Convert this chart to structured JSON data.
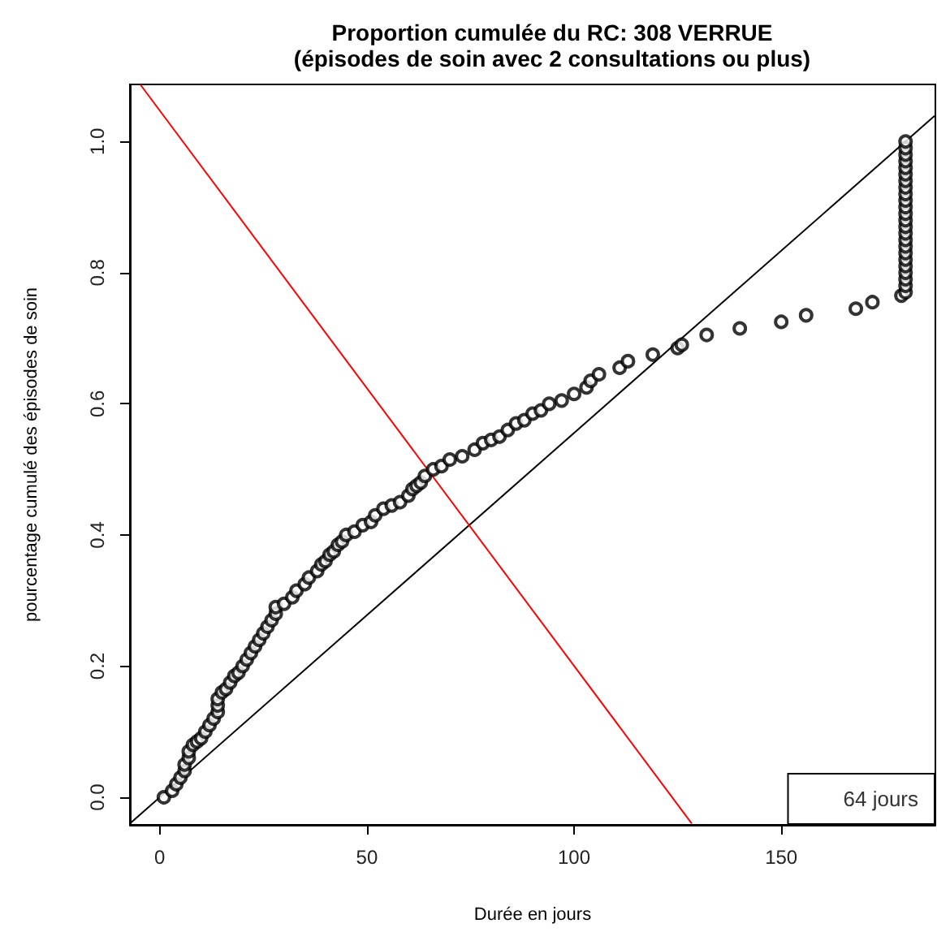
{
  "chart_data": {
    "type": "scatter",
    "title": "Proportion cumulée du RC: 308 VERRUE",
    "subtitle": "(épisodes de soin avec 2 consultations ou plus)",
    "xlabel": "Durée en jours",
    "ylabel": "pourcentage cumulé des épisodes de soin",
    "annotations": [
      "64 jours"
    ],
    "series": [
      {
        "color": "#000000",
        "marker": "circle",
        "x": [
          1,
          3,
          4,
          5,
          6,
          6,
          7,
          7,
          8,
          9,
          10,
          11,
          12,
          13,
          14,
          14,
          14,
          15,
          16,
          17,
          18,
          19,
          20,
          21,
          22,
          23,
          24,
          25,
          26,
          27,
          28,
          28,
          30,
          32,
          33,
          35,
          36,
          38,
          39,
          40,
          41,
          42,
          43,
          44,
          45,
          47,
          49,
          51,
          52,
          54,
          56,
          58,
          60,
          61,
          62,
          63,
          64,
          66,
          68,
          70,
          73,
          76,
          78,
          80,
          82,
          84,
          86,
          88,
          90,
          92,
          94,
          97,
          100,
          103,
          104,
          106,
          111,
          113,
          119,
          125,
          126,
          132,
          140,
          150,
          156,
          168,
          172,
          179,
          180,
          180,
          180,
          180,
          180,
          180,
          180,
          180,
          180,
          180,
          180,
          180,
          180,
          180,
          180,
          180,
          180,
          180,
          180,
          180,
          180,
          180,
          180,
          180
        ],
        "values": [
          0.0,
          0.01,
          0.02,
          0.03,
          0.04,
          0.05,
          0.06,
          0.07,
          0.08,
          0.085,
          0.09,
          0.1,
          0.11,
          0.12,
          0.13,
          0.14,
          0.15,
          0.16,
          0.165,
          0.175,
          0.185,
          0.19,
          0.2,
          0.21,
          0.22,
          0.23,
          0.24,
          0.25,
          0.26,
          0.27,
          0.28,
          0.29,
          0.295,
          0.305,
          0.315,
          0.325,
          0.335,
          0.345,
          0.355,
          0.36,
          0.37,
          0.375,
          0.385,
          0.39,
          0.4,
          0.405,
          0.415,
          0.42,
          0.43,
          0.44,
          0.445,
          0.45,
          0.46,
          0.47,
          0.475,
          0.48,
          0.49,
          0.5,
          0.505,
          0.515,
          0.52,
          0.53,
          0.54,
          0.545,
          0.55,
          0.56,
          0.57,
          0.575,
          0.585,
          0.59,
          0.6,
          0.605,
          0.615,
          0.625,
          0.635,
          0.645,
          0.655,
          0.665,
          0.675,
          0.685,
          0.69,
          0.705,
          0.715,
          0.725,
          0.735,
          0.745,
          0.755,
          0.765,
          0.77,
          0.78,
          0.79,
          0.8,
          0.81,
          0.82,
          0.83,
          0.84,
          0.85,
          0.86,
          0.87,
          0.88,
          0.89,
          0.9,
          0.91,
          0.92,
          0.93,
          0.94,
          0.95,
          0.96,
          0.97,
          0.98,
          0.99,
          1.0
        ]
      },
      {
        "type": "line",
        "color": "#000000",
        "marker": "none",
        "line_style": "solid",
        "x": [
          -7,
          187
        ],
        "values": [
          -0.039,
          1.039
        ]
      },
      {
        "type": "line",
        "color": "#ff0000",
        "marker": "none",
        "line_style": "solid",
        "x": [
          -4.7,
          128.4
        ],
        "values": [
          1.087,
          -0.04
        ]
      }
    ],
    "xlim": [
      -7.2,
      187.2
    ],
    "ylim": [
      -0.042,
      1.087
    ],
    "xticks": [
      0,
      50,
      100,
      150
    ],
    "yticks": [
      {
        "value": 0,
        "label": "0.0"
      },
      {
        "value": 0.2,
        "label": "0.2"
      },
      {
        "value": 0.4,
        "label": "0.4"
      },
      {
        "value": 0.6,
        "label": "0.6"
      },
      {
        "value": 0.8,
        "label": "0.8"
      },
      {
        "value": 1,
        "label": "1.0"
      }
    ],
    "grid": false
  }
}
